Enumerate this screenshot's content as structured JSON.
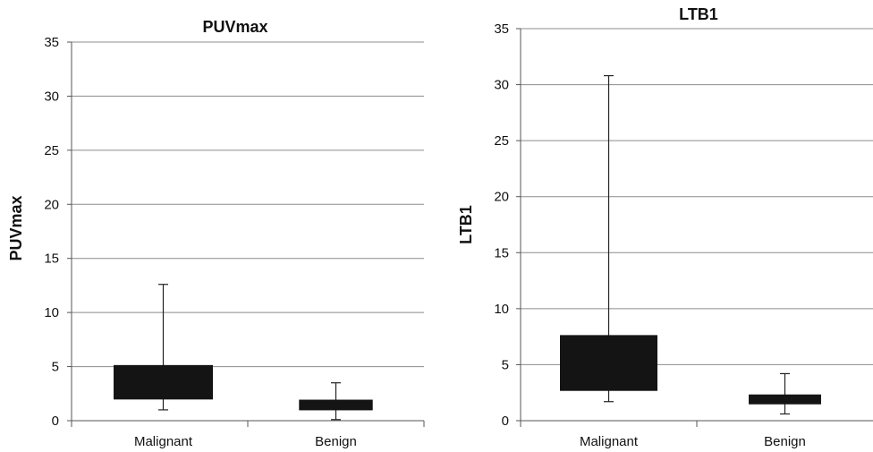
{
  "chart_data": [
    {
      "type": "box",
      "title": "PUVmax",
      "ylabel": "PUVmax",
      "xlabel": "",
      "ylim": [
        0,
        35
      ],
      "yticks": [
        0,
        5,
        10,
        15,
        20,
        25,
        30,
        35
      ],
      "grid": true,
      "categories": [
        "Malignant",
        "Benign"
      ],
      "boxes": [
        {
          "category": "Malignant",
          "min": 1.0,
          "q1": 2.0,
          "q3": 5.1,
          "max": 12.6
        },
        {
          "category": "Benign",
          "min": 0.1,
          "q1": 1.0,
          "q3": 1.9,
          "max": 3.5
        }
      ]
    },
    {
      "type": "box",
      "title": "LTB1",
      "ylabel": "LTB1",
      "xlabel": "",
      "ylim": [
        0,
        35
      ],
      "yticks": [
        0,
        5,
        10,
        15,
        20,
        25,
        30,
        35
      ],
      "grid": true,
      "categories": [
        "Malignant",
        "Benign"
      ],
      "boxes": [
        {
          "category": "Malignant",
          "min": 1.7,
          "q1": 2.7,
          "q3": 7.6,
          "max": 30.8
        },
        {
          "category": "Benign",
          "min": 0.6,
          "q1": 1.5,
          "q3": 2.3,
          "max": 4.2
        }
      ]
    }
  ]
}
